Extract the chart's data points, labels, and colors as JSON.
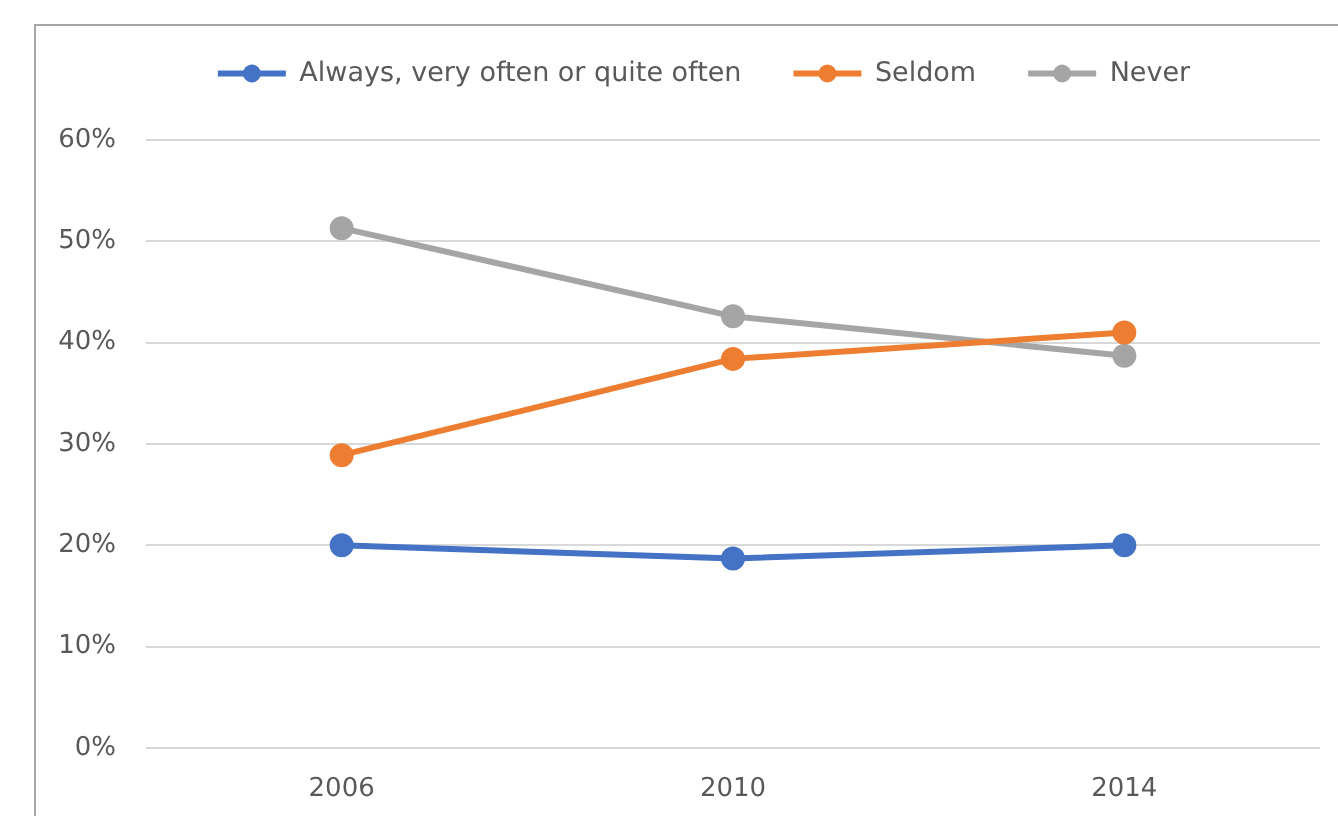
{
  "chart_data": {
    "type": "line",
    "categories": [
      "2006",
      "2010",
      "2014"
    ],
    "series": [
      {
        "name": "Always, very often or quite often",
        "color": "#4472c4",
        "values": [
          20.0,
          18.7,
          20.0
        ]
      },
      {
        "name": "Seldom",
        "color": "#ed7d31",
        "values": [
          28.9,
          38.4,
          41.0
        ]
      },
      {
        "name": "Never",
        "color": "#a5a5a5",
        "values": [
          51.3,
          42.6,
          38.7
        ]
      }
    ],
    "ylim": [
      0,
      60
    ],
    "yticks": [
      {
        "value": 0,
        "label": "0%"
      },
      {
        "value": 10,
        "label": "10%"
      },
      {
        "value": 20,
        "label": "20%"
      },
      {
        "value": 30,
        "label": "30%"
      },
      {
        "value": 40,
        "label": "40%"
      },
      {
        "value": 50,
        "label": "50%"
      },
      {
        "value": 60,
        "label": "60%"
      }
    ],
    "grid": "y",
    "legend": "top",
    "marker": "circle",
    "line_style": "solid"
  }
}
